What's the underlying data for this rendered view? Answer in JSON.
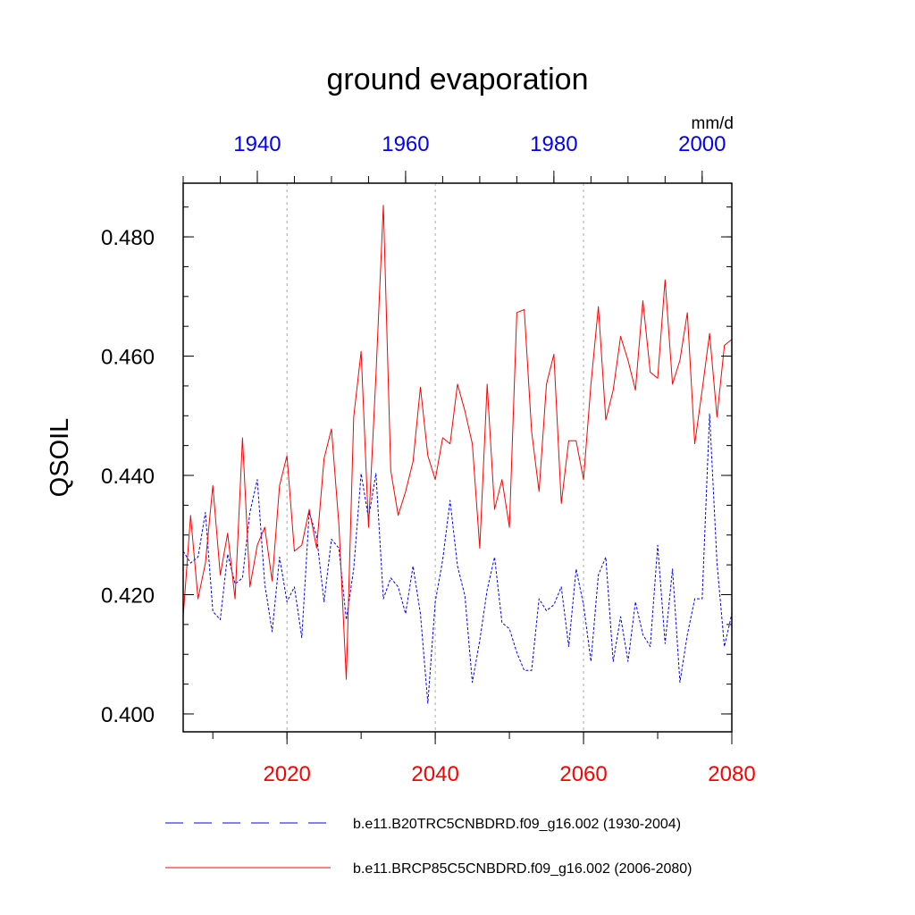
{
  "chart_data": {
    "type": "line",
    "title": "ground evaporation",
    "ylabel": "QSOIL",
    "units": "mm/d",
    "ylim": [
      0.397,
      0.489
    ],
    "yticks": [
      "0.400",
      "0.420",
      "0.440",
      "0.460",
      "0.480"
    ],
    "bottom_axis": {
      "range": [
        2006,
        2080
      ],
      "ticks": [
        "2020",
        "2040",
        "2060",
        "2080"
      ],
      "color": "#ff0000"
    },
    "top_axis": {
      "range": [
        1930,
        2004
      ],
      "ticks": [
        "1940",
        "1960",
        "1980",
        "2000"
      ],
      "color": "#0000ff"
    },
    "series": [
      {
        "name": "b.e11.B20TRC5CNBDRD.f09_g16.002 (1930-2004)",
        "axis": "top",
        "color": "#0000ff",
        "style": "dashed",
        "x": [
          1930,
          1931,
          1932,
          1933,
          1934,
          1935,
          1936,
          1937,
          1938,
          1939,
          1940,
          1941,
          1942,
          1943,
          1944,
          1945,
          1946,
          1947,
          1948,
          1949,
          1950,
          1951,
          1952,
          1953,
          1954,
          1955,
          1956,
          1957,
          1958,
          1959,
          1960,
          1961,
          1962,
          1963,
          1964,
          1965,
          1966,
          1967,
          1968,
          1969,
          1970,
          1971,
          1972,
          1973,
          1974,
          1975,
          1976,
          1977,
          1978,
          1979,
          1980,
          1981,
          1982,
          1983,
          1984,
          1985,
          1986,
          1987,
          1988,
          1989,
          1990,
          1991,
          1992,
          1993,
          1994,
          1995,
          1996,
          1997,
          1998,
          1999,
          2000,
          2001,
          2002,
          2003,
          2004
        ],
        "values": [
          0.4273,
          0.4253,
          0.4263,
          0.4338,
          0.4172,
          0.4158,
          0.4268,
          0.4218,
          0.4228,
          0.4338,
          0.4393,
          0.4218,
          0.4138,
          0.4263,
          0.4188,
          0.4213,
          0.4128,
          0.4338,
          0.4298,
          0.4188,
          0.4293,
          0.4278,
          0.4158,
          0.4243,
          0.4403,
          0.4328,
          0.4403,
          0.4193,
          0.4228,
          0.4213,
          0.4168,
          0.4248,
          0.4168,
          0.4018,
          0.4188,
          0.4258,
          0.4358,
          0.4248,
          0.4198,
          0.4053,
          0.4123,
          0.4208,
          0.4263,
          0.4153,
          0.4143,
          0.4103,
          0.4073,
          0.4073,
          0.4193,
          0.4173,
          0.4183,
          0.4213,
          0.4113,
          0.4243,
          0.4183,
          0.4088,
          0.4233,
          0.4263,
          0.4088,
          0.4163,
          0.4088,
          0.4188,
          0.4133,
          0.4113,
          0.4283,
          0.4118,
          0.4243,
          0.4053,
          0.4133,
          0.4193,
          0.4193,
          0.4503,
          0.4253,
          0.4113,
          0.4168
        ]
      },
      {
        "name": "b.e11.BRCP85C5CNBDRD.f09_g16.002 (2006-2080)",
        "axis": "bottom",
        "color": "#ff0000",
        "style": "solid",
        "x": [
          2006,
          2007,
          2008,
          2009,
          2010,
          2011,
          2012,
          2013,
          2014,
          2015,
          2016,
          2017,
          2018,
          2019,
          2020,
          2021,
          2022,
          2023,
          2024,
          2025,
          2026,
          2027,
          2028,
          2029,
          2030,
          2031,
          2032,
          2033,
          2034,
          2035,
          2036,
          2037,
          2038,
          2039,
          2040,
          2041,
          2042,
          2043,
          2044,
          2045,
          2046,
          2047,
          2048,
          2049,
          2050,
          2051,
          2052,
          2053,
          2054,
          2055,
          2056,
          2057,
          2058,
          2059,
          2060,
          2061,
          2062,
          2063,
          2064,
          2065,
          2066,
          2067,
          2068,
          2069,
          2070,
          2071,
          2072,
          2073,
          2074,
          2075,
          2076,
          2077,
          2078,
          2079,
          2080
        ],
        "values": [
          0.4163,
          0.4333,
          0.4193,
          0.4253,
          0.4383,
          0.4233,
          0.4303,
          0.4193,
          0.4463,
          0.4213,
          0.4283,
          0.4313,
          0.4223,
          0.4383,
          0.4433,
          0.4273,
          0.4283,
          0.4343,
          0.4278,
          0.4428,
          0.4478,
          0.4318,
          0.4058,
          0.4498,
          0.4608,
          0.4313,
          0.4568,
          0.4853,
          0.4408,
          0.4333,
          0.4373,
          0.4423,
          0.4548,
          0.4433,
          0.4393,
          0.4463,
          0.4453,
          0.4553,
          0.4508,
          0.4453,
          0.4278,
          0.4553,
          0.4343,
          0.4393,
          0.4313,
          0.4673,
          0.4678,
          0.4473,
          0.4373,
          0.4553,
          0.4603,
          0.4353,
          0.4458,
          0.4458,
          0.4393,
          0.4553,
          0.4683,
          0.4493,
          0.4543,
          0.4633,
          0.4593,
          0.4543,
          0.4693,
          0.4573,
          0.4563,
          0.4728,
          0.4553,
          0.4593,
          0.4673,
          0.4453,
          0.4543,
          0.4638,
          0.4498,
          0.4618,
          0.4628
        ]
      }
    ]
  }
}
